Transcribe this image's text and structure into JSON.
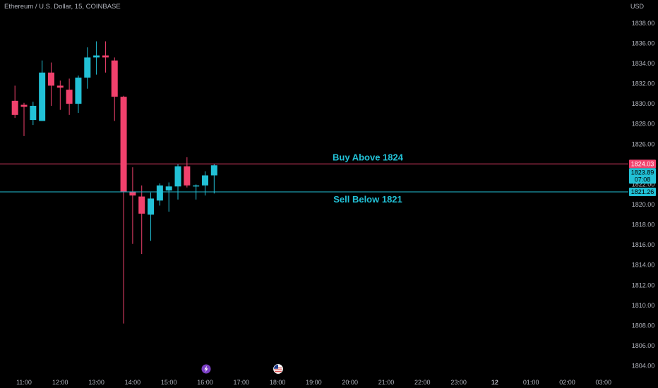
{
  "header": {
    "title": "Ethereum / U.S. Dollar, 15, COINBASE",
    "currency": "USD"
  },
  "colors": {
    "up": "#22c1d6",
    "down": "#f0416c",
    "buy_line": "#f0416c",
    "sell_line": "#22c1d6",
    "background": "#000000"
  },
  "price_tags": {
    "buy": "1824.03",
    "last": "1823.89",
    "countdown": "07:08",
    "sell": "1821.26"
  },
  "events": {
    "lightning_icon": "lightning-icon",
    "flag_icon": "us-flag-icon"
  },
  "chart_data": {
    "type": "candlestick",
    "title": "Ethereum / U.S. Dollar, 15, COINBASE",
    "interval_minutes": 15,
    "y_unit": "USD",
    "ylim": [
      1803.2,
      1838.9
    ],
    "yticks": [
      "1804.00",
      "1806.00",
      "1808.00",
      "1810.00",
      "1812.00",
      "1814.00",
      "1816.00",
      "1818.00",
      "1820.00",
      "1822.00",
      "1824.00",
      "1826.00",
      "1828.00",
      "1830.00",
      "1832.00",
      "1834.00",
      "1836.00",
      "1838.00"
    ],
    "xticks": [
      "11:00",
      "12:00",
      "13:00",
      "14:00",
      "15:00",
      "16:00",
      "17:00",
      "18:00",
      "19:00",
      "20:00",
      "21:00",
      "22:00",
      "23:00",
      "12",
      "01:00",
      "02:00",
      "03:00"
    ],
    "candles": [
      {
        "t": "10:45",
        "o": 1830.3,
        "h": 1831.8,
        "l": 1828.6,
        "c": 1828.9
      },
      {
        "t": "11:00",
        "o": 1829.9,
        "h": 1830.1,
        "l": 1826.8,
        "c": 1829.7
      },
      {
        "t": "11:15",
        "o": 1828.4,
        "h": 1830.2,
        "l": 1827.9,
        "c": 1829.8
      },
      {
        "t": "11:30",
        "o": 1828.3,
        "h": 1834.3,
        "l": 1828.3,
        "c": 1833.1
      },
      {
        "t": "11:45",
        "o": 1833.1,
        "h": 1834.1,
        "l": 1829.8,
        "c": 1831.8
      },
      {
        "t": "12:00",
        "o": 1831.8,
        "h": 1832.3,
        "l": 1829.4,
        "c": 1831.6
      },
      {
        "t": "12:15",
        "o": 1831.4,
        "h": 1832.5,
        "l": 1828.9,
        "c": 1830.0
      },
      {
        "t": "12:30",
        "o": 1830.0,
        "h": 1832.8,
        "l": 1829.1,
        "c": 1832.6
      },
      {
        "t": "12:45",
        "o": 1832.6,
        "h": 1835.6,
        "l": 1831.5,
        "c": 1834.6
      },
      {
        "t": "13:00",
        "o": 1834.6,
        "h": 1836.2,
        "l": 1832.9,
        "c": 1834.8
      },
      {
        "t": "13:15",
        "o": 1834.8,
        "h": 1836.2,
        "l": 1833.1,
        "c": 1834.6
      },
      {
        "t": "13:30",
        "o": 1834.3,
        "h": 1834.6,
        "l": 1828.3,
        "c": 1830.7
      },
      {
        "t": "13:45",
        "o": 1830.7,
        "h": 1830.8,
        "l": 1808.2,
        "c": 1821.3
      },
      {
        "t": "14:00",
        "o": 1821.3,
        "h": 1823.7,
        "l": 1816.1,
        "c": 1820.9
      },
      {
        "t": "14:15",
        "o": 1820.8,
        "h": 1821.9,
        "l": 1815.1,
        "c": 1819.1
      },
      {
        "t": "14:30",
        "o": 1819.0,
        "h": 1821.2,
        "l": 1816.4,
        "c": 1820.6
      },
      {
        "t": "14:45",
        "o": 1820.4,
        "h": 1822.1,
        "l": 1819.9,
        "c": 1821.9
      },
      {
        "t": "15:00",
        "o": 1821.4,
        "h": 1822.2,
        "l": 1819.3,
        "c": 1821.8
      },
      {
        "t": "15:15",
        "o": 1821.8,
        "h": 1824.0,
        "l": 1820.5,
        "c": 1823.8
      },
      {
        "t": "15:30",
        "o": 1823.8,
        "h": 1824.7,
        "l": 1821.7,
        "c": 1821.9
      },
      {
        "t": "15:45",
        "o": 1821.9,
        "h": 1822.0,
        "l": 1820.5,
        "c": 1821.9
      },
      {
        "t": "16:00",
        "o": 1821.9,
        "h": 1823.3,
        "l": 1820.9,
        "c": 1822.9
      },
      {
        "t": "16:15",
        "o": 1822.9,
        "h": 1824.0,
        "l": 1821.1,
        "c": 1823.9
      }
    ],
    "horizontal_lines": [
      {
        "label": "Buy Above 1824",
        "value": 1824.03,
        "color": "#f0416c"
      },
      {
        "label": "Sell Below 1821",
        "value": 1821.26,
        "color": "#22c1d6"
      }
    ],
    "grid": false,
    "legend": "none"
  }
}
